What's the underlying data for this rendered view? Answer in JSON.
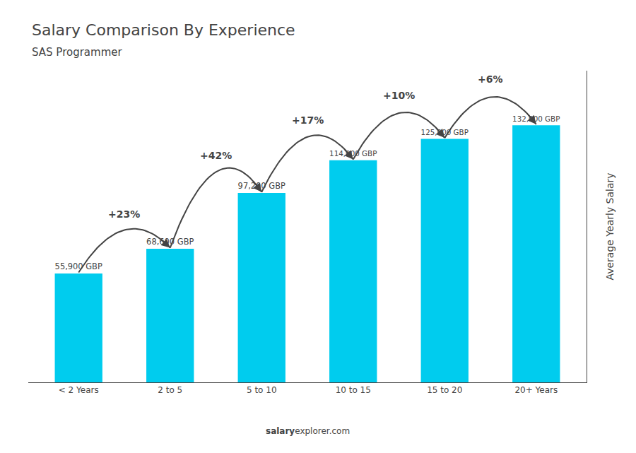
{
  "chart_data": {
    "type": "bar",
    "title": "Salary Comparison By Experience",
    "subtitle": "SAS Programmer",
    "categories": [
      "< 2 Years",
      "2 to 5",
      "5 to 10",
      "10 to 15",
      "15 to 20",
      "20+ Years"
    ],
    "values": [
      55900,
      68600,
      97200,
      114000,
      125000,
      132000
    ],
    "value_labels": [
      "55,900 GBP",
      "68,600 GBP",
      "97,200 GBP",
      "114,000 GBP",
      "125,000 GBP",
      "132,000 GBP"
    ],
    "data_labels": true,
    "color": "#00ccee",
    "ylabel": "Average Yearly Salary",
    "ylim": [
      0,
      160000
    ],
    "annotations": [
      "+23%",
      "+42%",
      "+17%",
      "+10%",
      "+6%"
    ],
    "watermark": [
      "salary",
      "explorer.com"
    ],
    "grid": false,
    "tick_labels": "x"
  }
}
